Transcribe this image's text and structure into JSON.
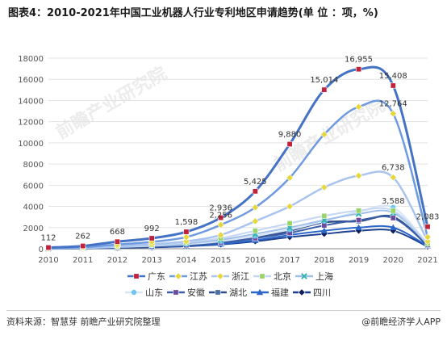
{
  "title": "图表4：2010-2021年中国工业机器人行业专利地区申请趋势(单 位 ：项，%)",
  "source": "资料来源：智慧芽 前瞻产业研究院整理",
  "brand": "@前瞻经济学人APP",
  "watermark": "前瞻产业研究院",
  "chart_data": {
    "type": "line",
    "x": [
      "2010",
      "2011",
      "2012",
      "2013",
      "2014",
      "2015",
      "2016",
      "2017",
      "2018",
      "2019",
      "2020",
      "2021"
    ],
    "ylim": [
      0,
      18000
    ],
    "yticks": [
      0,
      2000,
      4000,
      6000,
      8000,
      10000,
      12000,
      14000,
      16000,
      18000
    ],
    "legend_position": "bottom",
    "series": [
      {
        "name": "广东",
        "color": "#4472c4",
        "marker": "square",
        "marker_color": "#c0213b",
        "width": 3,
        "values": [
          112,
          262,
          668,
          992,
          1598,
          2936,
          5425,
          9880,
          15014,
          16955,
          15408,
          2083
        ],
        "labels": [
          "112",
          "262",
          "668",
          "992",
          "1,598",
          "2,936",
          "5,425",
          "9,880",
          "15,014",
          "16,955",
          "15,408",
          "2,083"
        ]
      },
      {
        "name": "江苏",
        "color": "#6f9ae0",
        "marker": "diamond",
        "marker_color": "#e6d83c",
        "width": 2.5,
        "values": [
          60,
          150,
          400,
          650,
          1100,
          2256,
          3900,
          6700,
          10800,
          13400,
          12764,
          1100
        ],
        "labels": [
          "",
          "",
          "",
          "",
          "",
          "2,256",
          "",
          "",
          "",
          "",
          "12,764",
          ""
        ]
      },
      {
        "name": "浙江",
        "color": "#a9c4ee",
        "marker": "diamond",
        "marker_color": "#e6d83c",
        "width": 2.5,
        "values": [
          40,
          100,
          260,
          430,
          700,
          1300,
          2600,
          4000,
          5800,
          6900,
          6738,
          700
        ],
        "labels": [
          "",
          "",
          "",
          "",
          "",
          "",
          "",
          "",
          "",
          "",
          "6,738",
          ""
        ]
      },
      {
        "name": "北京",
        "color": "#c3d6f3",
        "marker": "square",
        "marker_color": "#9ad36a",
        "width": 2,
        "values": [
          35,
          80,
          220,
          360,
          600,
          1000,
          1700,
          2400,
          3100,
          3600,
          3588,
          500
        ],
        "labels": [
          "",
          "",
          "",
          "",
          "",
          "",
          "",
          "",
          "",
          "",
          "3,588",
          ""
        ]
      },
      {
        "name": "上海",
        "color": "#9fbfe8",
        "marker": "x",
        "marker_color": "#2bb3a8",
        "width": 2,
        "values": [
          30,
          70,
          190,
          320,
          500,
          850,
          1400,
          2000,
          2700,
          3300,
          3400,
          450
        ],
        "labels": []
      },
      {
        "name": "山东",
        "color": "#d6e4f7",
        "marker": "circle",
        "marker_color": "#6ec6f0",
        "width": 2,
        "values": [
          25,
          60,
          160,
          270,
          420,
          700,
          1200,
          1800,
          2600,
          3500,
          3900,
          420
        ],
        "labels": []
      },
      {
        "name": "安徽",
        "color": "#3d5fa8",
        "marker": "square",
        "marker_color": "#6d4aa0",
        "width": 2,
        "values": [
          15,
          40,
          110,
          200,
          330,
          600,
          1000,
          1500,
          2200,
          2700,
          2900,
          350
        ],
        "labels": []
      },
      {
        "name": "湖北",
        "color": "#2f4f8c",
        "marker": "square",
        "marker_color": "#4a6fa0",
        "width": 2.5,
        "values": [
          12,
          35,
          100,
          190,
          320,
          600,
          1000,
          1700,
          2500,
          2600,
          3000,
          300
        ],
        "labels": []
      },
      {
        "name": "福建",
        "color": "#2c66c9",
        "marker": "triangle",
        "marker_color": "#2c66c9",
        "width": 2,
        "values": [
          10,
          25,
          80,
          150,
          260,
          450,
          800,
          1300,
          1700,
          2000,
          2000,
          250
        ],
        "labels": []
      },
      {
        "name": "四川",
        "color": "#1b3f8f",
        "marker": "diamond",
        "marker_color": "#0f1f5a",
        "width": 2,
        "values": [
          8,
          20,
          70,
          130,
          230,
          400,
          700,
          1100,
          1400,
          1700,
          1700,
          200
        ],
        "labels": []
      }
    ]
  }
}
